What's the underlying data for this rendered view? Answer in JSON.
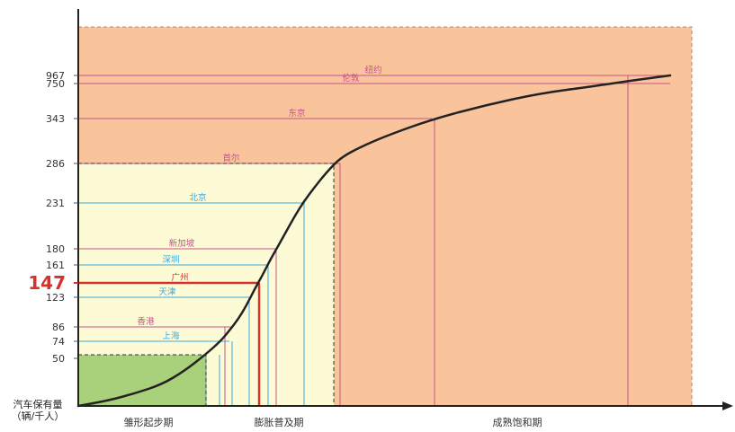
{
  "chart_data": {
    "type": "line",
    "title": "",
    "ylabel_lines": [
      "汽车保有量",
      "（辆/千人）"
    ],
    "y_ticks": [
      {
        "label": "967",
        "value": 967,
        "highlight": false
      },
      {
        "label": "750",
        "value": 750,
        "highlight": false
      },
      {
        "label": "343",
        "value": 343,
        "highlight": false
      },
      {
        "label": "286",
        "value": 286,
        "highlight": false
      },
      {
        "label": "231",
        "value": 231,
        "highlight": false
      },
      {
        "label": "180",
        "value": 180,
        "highlight": false
      },
      {
        "label": "161",
        "value": 161,
        "highlight": false
      },
      {
        "label": "147",
        "value": 147,
        "highlight": true
      },
      {
        "label": "123",
        "value": 123,
        "highlight": false
      },
      {
        "label": "86",
        "value": 86,
        "highlight": false
      },
      {
        "label": "74",
        "value": 74,
        "highlight": false
      },
      {
        "label": "50",
        "value": 50,
        "highlight": false
      }
    ],
    "phases": [
      {
        "label": "雏形起步期",
        "color": "#a9d07a"
      },
      {
        "label": "膨胀普及期",
        "color": "#fdfbd6"
      },
      {
        "label": "成熟饱和期",
        "color": "#f9c49c"
      }
    ],
    "cities": [
      {
        "name": "纽约",
        "value": 967,
        "color": "#c7538a"
      },
      {
        "name": "伦敦",
        "value": 750,
        "color": "#c7538a"
      },
      {
        "name": "东京",
        "value": 343,
        "color": "#c7538a"
      },
      {
        "name": "首尔",
        "value": 286,
        "color": "#c7538a"
      },
      {
        "name": "北京",
        "value": 231,
        "color": "#3fa9e0"
      },
      {
        "name": "新加坡",
        "value": 180,
        "color": "#c7538a"
      },
      {
        "name": "深圳",
        "value": 161,
        "color": "#3fa9e0"
      },
      {
        "name": "广州",
        "value": 147,
        "color": "#d9302a"
      },
      {
        "name": "天津",
        "value": 123,
        "color": "#3fa9e0"
      },
      {
        "name": "香港",
        "value": 86,
        "color": "#c7538a"
      },
      {
        "name": "上海",
        "value": 74,
        "color": "#3fa9e0"
      }
    ],
    "colors": {
      "curve": "#222222",
      "axis": "#222222",
      "highlight": "#d9302a",
      "tick_text": "#333333"
    }
  }
}
